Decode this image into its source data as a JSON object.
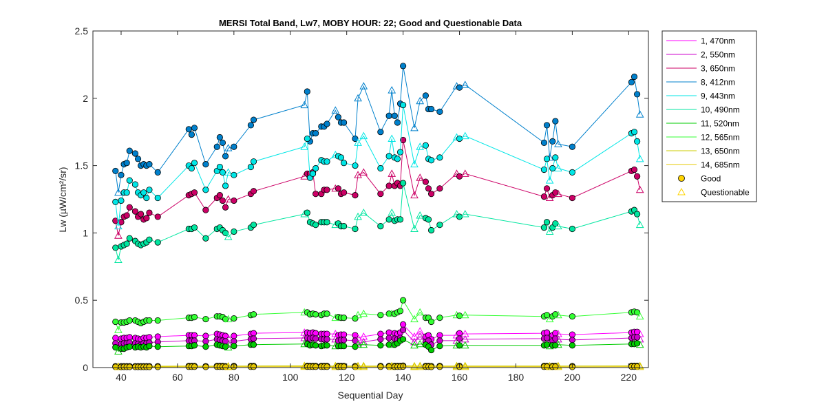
{
  "chart_data": {
    "type": "line",
    "title": "MERSI Total Band,  Lw7, MOBY HOUR: 22;  Good and Questionable Data",
    "xlabel": "Sequential Day",
    "ylabel": "Lw (µW/cm²/sr)",
    "xlim": [
      30,
      227
    ],
    "ylim": [
      0,
      2.5
    ],
    "xticks": [
      40,
      60,
      80,
      100,
      120,
      140,
      160,
      180,
      200,
      220
    ],
    "yticks": [
      0,
      0.5,
      1,
      1.5,
      2,
      2.5
    ],
    "xtick_labels": [
      "40",
      "60",
      "80",
      "100",
      "120",
      "140",
      "160",
      "180",
      "200",
      "220"
    ],
    "ytick_labels": [
      "0",
      "0.5",
      "1",
      "1.5",
      "2",
      "2.5"
    ],
    "grid": false,
    "legend_position": "outside-top-right",
    "x": [
      38,
      39,
      40,
      41,
      42,
      43,
      45,
      46,
      47,
      48,
      49,
      50,
      53,
      64,
      65,
      66,
      70,
      74,
      75,
      76,
      77,
      78,
      80,
      86,
      87,
      105,
      106,
      107,
      108,
      109,
      111,
      112,
      113,
      116,
      117,
      118,
      119,
      123,
      124,
      126,
      132,
      135,
      136,
      137,
      138,
      139,
      140,
      144,
      146,
      148,
      149,
      150,
      153,
      159,
      160,
      162,
      190,
      191,
      192,
      193,
      194,
      195,
      200,
      221,
      222,
      223,
      224
    ],
    "quality": [
      "G",
      "Q",
      "G",
      "G",
      "G",
      "G",
      "G",
      "G",
      "G",
      "G",
      "G",
      "G",
      "G",
      "G",
      "G",
      "G",
      "G",
      "G",
      "G",
      "G",
      "G",
      "Q",
      "G",
      "G",
      "G",
      "Q",
      "G",
      "G",
      "G",
      "G",
      "G",
      "G",
      "G",
      "Q",
      "G",
      "G",
      "G",
      "G",
      "Q",
      "Q",
      "G",
      "G",
      "Q",
      "G",
      "G",
      "G",
      "G",
      "Q",
      "Q",
      "G",
      "G",
      "G",
      "G",
      "Q",
      "G",
      "Q",
      "G",
      "G",
      "Q",
      "G",
      "G",
      "Q",
      "G",
      "G",
      "G",
      "G",
      "Q"
    ],
    "series": [
      {
        "name": "1, 470nm",
        "color": "#ff00ff",
        "values": [
          0.22,
          0.2,
          0.215,
          0.22,
          0.22,
          0.225,
          0.22,
          0.215,
          0.21,
          0.22,
          0.22,
          0.225,
          0.23,
          0.24,
          0.24,
          0.24,
          0.235,
          0.25,
          0.245,
          0.24,
          0.235,
          0.22,
          0.235,
          0.25,
          0.255,
          0.26,
          0.26,
          0.255,
          0.26,
          0.255,
          0.25,
          0.25,
          0.25,
          0.25,
          0.24,
          0.245,
          0.245,
          0.24,
          0.22,
          0.23,
          0.25,
          0.26,
          0.25,
          0.255,
          0.25,
          0.26,
          0.32,
          0.23,
          0.27,
          0.23,
          0.24,
          0.21,
          0.24,
          0.24,
          0.255,
          0.25,
          0.255,
          0.26,
          0.22,
          0.24,
          0.255,
          0.25,
          0.245,
          0.26,
          0.265,
          0.265,
          0.25
        ]
      },
      {
        "name": "2, 550nm",
        "color": "#cc00cc",
        "values": [
          0.18,
          0.16,
          0.175,
          0.18,
          0.18,
          0.185,
          0.18,
          0.175,
          0.17,
          0.18,
          0.18,
          0.185,
          0.19,
          0.2,
          0.2,
          0.2,
          0.195,
          0.21,
          0.205,
          0.2,
          0.195,
          0.18,
          0.195,
          0.21,
          0.215,
          0.22,
          0.22,
          0.215,
          0.22,
          0.215,
          0.21,
          0.21,
          0.21,
          0.21,
          0.2,
          0.205,
          0.205,
          0.2,
          0.18,
          0.19,
          0.21,
          0.22,
          0.21,
          0.215,
          0.21,
          0.22,
          0.28,
          0.19,
          0.23,
          0.19,
          0.2,
          0.17,
          0.2,
          0.2,
          0.215,
          0.21,
          0.215,
          0.22,
          0.18,
          0.2,
          0.215,
          0.21,
          0.205,
          0.22,
          0.225,
          0.225,
          0.21
        ]
      },
      {
        "name": "3, 650nm",
        "color": "#cc0066",
        "values": [
          1.09,
          0.98,
          1.08,
          1.12,
          1.13,
          1.19,
          1.16,
          1.12,
          1.14,
          1.1,
          1.11,
          1.15,
          1.12,
          1.28,
          1.29,
          1.3,
          1.17,
          1.26,
          1.28,
          1.24,
          1.19,
          1.25,
          1.24,
          1.29,
          1.31,
          1.42,
          1.44,
          1.44,
          1.45,
          1.29,
          1.29,
          1.32,
          1.32,
          1.33,
          1.33,
          1.29,
          1.3,
          1.28,
          1.43,
          1.45,
          1.29,
          1.35,
          1.44,
          1.35,
          1.37,
          1.35,
          1.69,
          1.28,
          1.41,
          1.38,
          1.33,
          1.29,
          1.33,
          1.44,
          1.42,
          1.44,
          1.27,
          1.33,
          1.26,
          1.28,
          1.3,
          1.29,
          1.26,
          1.46,
          1.47,
          1.42,
          1.32
        ]
      },
      {
        "name": "8, 412nm",
        "color": "#0080cc",
        "values": [
          1.46,
          1.3,
          1.43,
          1.51,
          1.52,
          1.61,
          1.59,
          1.55,
          1.5,
          1.51,
          1.5,
          1.51,
          1.45,
          1.77,
          1.73,
          1.78,
          1.51,
          1.64,
          1.71,
          1.67,
          1.57,
          1.63,
          1.64,
          1.8,
          1.84,
          1.95,
          2.05,
          1.68,
          1.74,
          1.74,
          1.79,
          1.79,
          1.81,
          1.91,
          1.86,
          1.82,
          1.82,
          1.7,
          2.0,
          2.09,
          1.75,
          1.87,
          2.06,
          1.87,
          1.82,
          1.96,
          2.24,
          1.78,
          1.98,
          2.02,
          1.92,
          1.92,
          1.9,
          2.09,
          2.08,
          2.1,
          1.67,
          1.8,
          1.56,
          1.68,
          1.83,
          1.66,
          1.64,
          2.12,
          2.16,
          2.03,
          1.88
        ]
      },
      {
        "name": "9, 443nm",
        "color": "#00e6e6",
        "values": [
          1.23,
          1.05,
          1.24,
          1.3,
          1.3,
          1.39,
          1.36,
          1.3,
          1.28,
          1.3,
          1.26,
          1.32,
          1.26,
          1.5,
          1.48,
          1.52,
          1.32,
          1.46,
          1.49,
          1.45,
          1.35,
          1.45,
          1.43,
          1.49,
          1.53,
          1.64,
          1.7,
          1.41,
          1.44,
          1.48,
          1.54,
          1.53,
          1.53,
          1.58,
          1.57,
          1.56,
          1.52,
          1.5,
          1.67,
          1.72,
          1.48,
          1.57,
          1.7,
          1.56,
          1.55,
          1.6,
          1.95,
          1.51,
          1.64,
          1.65,
          1.55,
          1.54,
          1.56,
          1.71,
          1.7,
          1.72,
          1.47,
          1.55,
          1.39,
          1.48,
          1.56,
          1.48,
          1.45,
          1.74,
          1.75,
          1.68,
          1.55
        ]
      },
      {
        "name": "10, 490nm",
        "color": "#00e6a0",
        "values": [
          0.89,
          0.8,
          0.9,
          0.91,
          0.92,
          0.96,
          0.94,
          0.92,
          0.91,
          0.92,
          0.93,
          0.95,
          0.93,
          1.03,
          1.03,
          1.04,
          0.96,
          1.03,
          1.04,
          1.02,
          1.0,
          0.97,
          1.01,
          1.04,
          1.06,
          1.14,
          1.15,
          1.08,
          1.07,
          1.06,
          1.08,
          1.08,
          1.08,
          1.06,
          1.07,
          1.05,
          1.05,
          1.03,
          1.12,
          1.15,
          1.05,
          1.1,
          1.15,
          1.09,
          1.1,
          1.1,
          1.37,
          1.03,
          1.13,
          1.11,
          1.1,
          1.02,
          1.06,
          1.14,
          1.12,
          1.14,
          1.04,
          1.08,
          1.01,
          1.04,
          1.07,
          1.05,
          1.03,
          1.16,
          1.17,
          1.14,
          1.06
        ]
      },
      {
        "name": "11, 520nm",
        "color": "#00cc00",
        "values": [
          0.15,
          0.12,
          0.14,
          0.14,
          0.15,
          0.155,
          0.15,
          0.155,
          0.15,
          0.155,
          0.15,
          0.16,
          0.155,
          0.16,
          0.16,
          0.165,
          0.155,
          0.17,
          0.165,
          0.16,
          0.155,
          0.15,
          0.16,
          0.17,
          0.17,
          0.175,
          0.175,
          0.165,
          0.17,
          0.165,
          0.16,
          0.165,
          0.165,
          0.16,
          0.16,
          0.16,
          0.16,
          0.155,
          0.17,
          0.17,
          0.165,
          0.17,
          0.17,
          0.17,
          0.18,
          0.2,
          0.21,
          0.165,
          0.175,
          0.17,
          0.155,
          0.13,
          0.16,
          0.165,
          0.165,
          0.165,
          0.165,
          0.17,
          0.16,
          0.165,
          0.165,
          0.17,
          0.165,
          0.175,
          0.175,
          0.18,
          0.17
        ]
      },
      {
        "name": "12, 565nm",
        "color": "#33ff33",
        "values": [
          0.34,
          0.28,
          0.335,
          0.335,
          0.34,
          0.35,
          0.35,
          0.34,
          0.33,
          0.34,
          0.35,
          0.35,
          0.35,
          0.37,
          0.37,
          0.375,
          0.36,
          0.38,
          0.38,
          0.375,
          0.36,
          0.36,
          0.365,
          0.39,
          0.395,
          0.41,
          0.41,
          0.395,
          0.4,
          0.395,
          0.39,
          0.4,
          0.4,
          0.37,
          0.375,
          0.37,
          0.37,
          0.365,
          0.39,
          0.4,
          0.39,
          0.4,
          0.4,
          0.4,
          0.41,
          0.42,
          0.5,
          0.36,
          0.41,
          0.37,
          0.37,
          0.34,
          0.37,
          0.39,
          0.385,
          0.39,
          0.38,
          0.39,
          0.36,
          0.38,
          0.395,
          0.39,
          0.38,
          0.41,
          0.415,
          0.41,
          0.38
        ]
      },
      {
        "name": "13, 650nm",
        "color": "#cccc00",
        "values": [
          0.01,
          0.008,
          0.01,
          0.01,
          0.01,
          0.01,
          0.01,
          0.01,
          0.01,
          0.01,
          0.01,
          0.01,
          0.01,
          0.012,
          0.012,
          0.012,
          0.01,
          0.012,
          0.012,
          0.012,
          0.01,
          0.01,
          0.012,
          0.012,
          0.012,
          0.013,
          0.013,
          0.012,
          0.012,
          0.012,
          0.012,
          0.012,
          0.012,
          0.012,
          0.012,
          0.012,
          0.012,
          0.011,
          0.012,
          0.012,
          0.012,
          0.012,
          0.012,
          0.012,
          0.012,
          0.012,
          0.014,
          0.011,
          0.012,
          0.012,
          0.012,
          0.011,
          0.012,
          0.012,
          0.012,
          0.012,
          0.012,
          0.012,
          0.011,
          0.012,
          0.012,
          0.012,
          0.011,
          0.013,
          0.013,
          0.013,
          0.012
        ]
      },
      {
        "name": "14, 685nm",
        "color": "#e6c800",
        "values": [
          0.005,
          0.004,
          0.005,
          0.005,
          0.005,
          0.005,
          0.005,
          0.005,
          0.005,
          0.005,
          0.005,
          0.005,
          0.005,
          0.006,
          0.006,
          0.006,
          0.005,
          0.006,
          0.006,
          0.006,
          0.005,
          0.005,
          0.006,
          0.006,
          0.006,
          0.007,
          0.007,
          0.006,
          0.006,
          0.006,
          0.006,
          0.006,
          0.006,
          0.006,
          0.006,
          0.006,
          0.006,
          0.005,
          0.006,
          0.006,
          0.006,
          0.006,
          0.006,
          0.006,
          0.006,
          0.006,
          0.008,
          0.005,
          0.006,
          0.006,
          0.006,
          0.005,
          0.006,
          0.006,
          0.006,
          0.006,
          0.006,
          0.006,
          0.005,
          0.006,
          0.006,
          0.006,
          0.005,
          0.007,
          0.007,
          0.007,
          0.006
        ]
      }
    ],
    "legend": {
      "entries": [
        "1, 470nm",
        "2, 550nm",
        "3, 650nm",
        "8, 412nm",
        "9, 443nm",
        "10, 490nm",
        "11, 520nm",
        "12, 565nm",
        "13, 650nm",
        "14, 685nm"
      ],
      "good_label": "Good",
      "questionable_label": "Questionable",
      "marker_color": "#ffd400"
    }
  }
}
